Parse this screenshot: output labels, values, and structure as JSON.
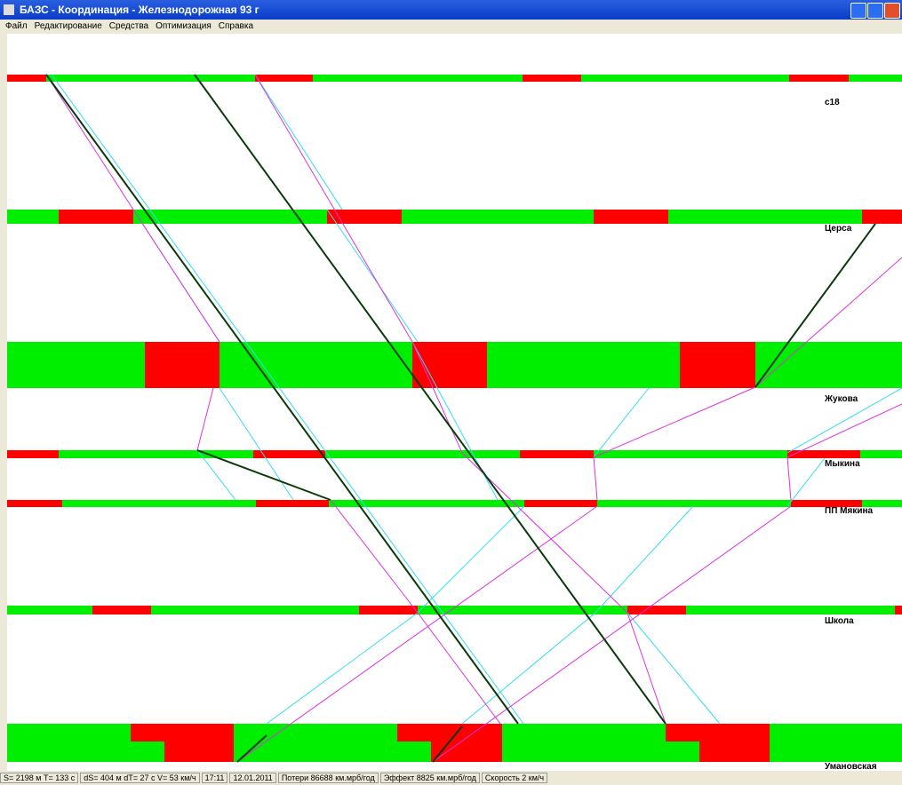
{
  "window": {
    "title": "БАЗС - Координация - Железнодорожная 93 г"
  },
  "menu": [
    "Файл",
    "Редактирование",
    "Средства",
    "Оптимизация",
    "Справка"
  ],
  "stations": [
    "с18",
    "Церса",
    "Жукова",
    "Мыкина",
    "ПП Мякина",
    "Школа",
    "Умановская"
  ],
  "status": [
    "S= 2198 м  T= 133 с",
    "dS= 404 м  dT= 27 с  V= 53 км/ч",
    "17:11",
    "12.01.2011",
    "Потери 86688 км.мрб/год",
    "Эффект 8825 км.мрб/год",
    "Скорость 2 км/ч"
  ]
}
